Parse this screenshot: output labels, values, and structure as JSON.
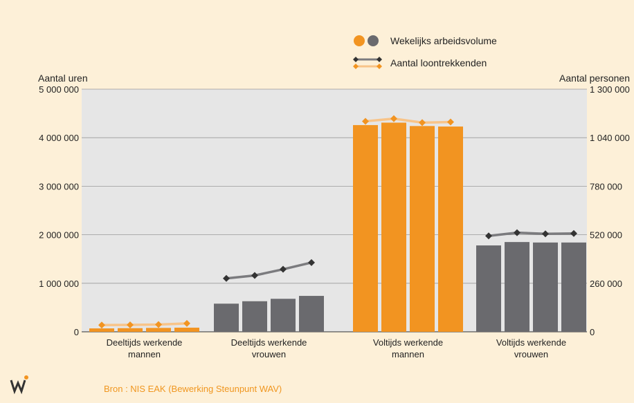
{
  "legend": {
    "volume_label": "Wekelijks arbeidsvolume",
    "count_label": "Aantal loontrekkenden"
  },
  "axes": {
    "left_title": "Aantal uren",
    "right_title": "Aantal personen"
  },
  "source": "Bron : NIS EAK (Bewerking Steunpunt WAV)",
  "colors": {
    "background": "#fdf0d8",
    "plot": "#e6e6e6",
    "orange": "#f29421",
    "gray": "#6a6a6e",
    "orange_line": "#f8c489",
    "gray_line": "#7b7b7e",
    "gray_marker": "#333333",
    "orange_marker": "#f29421"
  },
  "chart_data": {
    "type": "bar",
    "categories": [
      "Deeltijds werkende mannen",
      "Deeltijds werkende vrouwen",
      "Voltijds werkende mannen",
      "Voltijds werkende vrouwen"
    ],
    "category_lines": [
      [
        "Deeltijds werkende",
        "mannen"
      ],
      [
        "Deeltijds werkende",
        "vrouwen"
      ],
      [
        "Voltijds werkende",
        "mannen"
      ],
      [
        "Voltijds werkende",
        "vrouwen"
      ]
    ],
    "group_colors": [
      "orange",
      "gray",
      "orange",
      "gray"
    ],
    "series": [
      {
        "name": "Wekelijks arbeidsvolume",
        "axis": "left",
        "values": [
          [
            70000,
            75000,
            80000,
            85000
          ],
          [
            580000,
            630000,
            680000,
            740000
          ],
          [
            4260000,
            4310000,
            4240000,
            4230000
          ],
          [
            1780000,
            1850000,
            1840000,
            1840000
          ]
        ]
      },
      {
        "name": "Aantal loontrekkenden",
        "axis": "right",
        "values": [
          [
            36000,
            37000,
            39000,
            45000
          ],
          [
            286000,
            302000,
            335000,
            371000
          ],
          [
            1128000,
            1142000,
            1121000,
            1124000
          ],
          [
            514000,
            531000,
            525000,
            527000
          ]
        ]
      }
    ],
    "yleft": {
      "lim": [
        0,
        5000000
      ],
      "ticks": [
        0,
        1000000,
        2000000,
        3000000,
        4000000,
        5000000
      ],
      "tick_labels": [
        "0",
        "1 000 000",
        "2 000 000",
        "3 000 000",
        "4 000 000",
        "5 000 000"
      ]
    },
    "yright": {
      "lim": [
        0,
        1300000
      ],
      "ticks": [
        0,
        260000,
        520000,
        780000,
        1040000,
        1300000
      ],
      "tick_labels": [
        "0",
        "260 000",
        "520 000",
        "780 000",
        "1 040 000",
        "1 300 000"
      ]
    },
    "grid": "horizontal",
    "legend_position": "top-center"
  }
}
